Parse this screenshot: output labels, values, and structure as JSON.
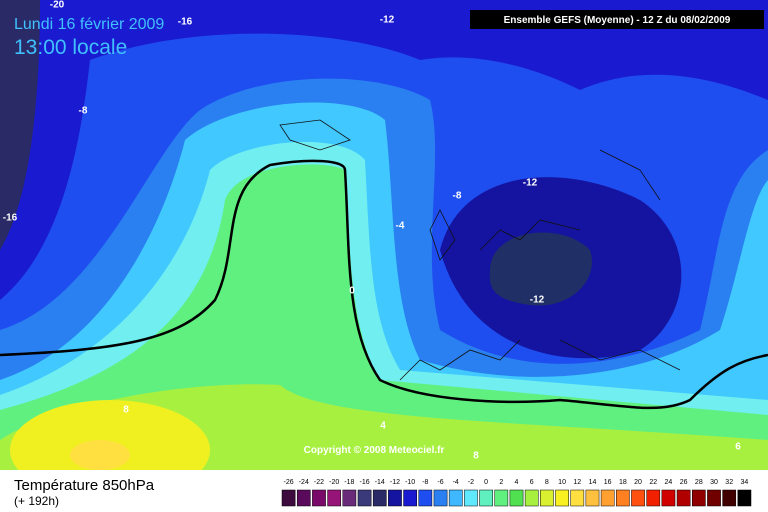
{
  "header": {
    "date": "Lundi 16 février 2009",
    "time": "13:00 locale",
    "model": "Ensemble GEFS (Moyenne)  - 12 Z du 08/02/2009"
  },
  "map": {
    "copyright": "Copyright © 2008 Meteociel.fr",
    "contour_labels": [
      "-20",
      "-16",
      "-12",
      "-8",
      "-16",
      "-8",
      "-12",
      "-4",
      "0",
      "-12",
      "8",
      "4",
      "8",
      "6"
    ]
  },
  "footer": {
    "title": "Température 850hPa",
    "subtitle": "(+ 192h)"
  },
  "legend": {
    "labels": [
      "-26",
      "-24",
      "-22",
      "-20",
      "-18",
      "-16",
      "-14",
      "-12",
      "-10",
      "-8",
      "-6",
      "-4",
      "-2",
      "0",
      "2",
      "4",
      "6",
      "8",
      "10",
      "12",
      "14",
      "16",
      "18",
      "20",
      "22",
      "24",
      "26",
      "28",
      "30",
      "32",
      "34"
    ],
    "colors": [
      "#3c0a3c",
      "#5a0a5a",
      "#7a0a6a",
      "#961478",
      "#6a2a7a",
      "#3a3a7a",
      "#2a2a66",
      "#1414a0",
      "#1a1ad0",
      "#1f4ef0",
      "#2a80f0",
      "#40b8ff",
      "#60e8ff",
      "#60f0c0",
      "#60f080",
      "#50e050",
      "#a8f040",
      "#d8f030",
      "#f8f020",
      "#ffe040",
      "#ffc040",
      "#ffa030",
      "#ff8020",
      "#ff5010",
      "#f02000",
      "#d00000",
      "#b00000",
      "#900000",
      "#700000",
      "#400000",
      "#000000"
    ]
  }
}
